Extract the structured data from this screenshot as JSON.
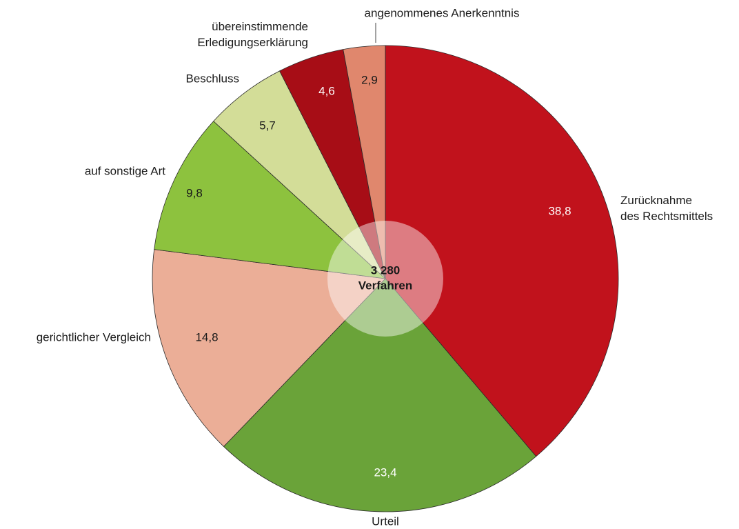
{
  "chart_data": {
    "type": "pie",
    "categories": [
      "Zurücknahme des Rechtsmittels",
      "Urteil",
      "gerichtlicher Vergleich",
      "auf sonstige Art",
      "Beschluss",
      "übereinstimmende Erledigungserklärung",
      "angenommenes Anerkenntnis"
    ],
    "values": [
      38.8,
      23.4,
      14.8,
      9.8,
      5.7,
      4.6,
      2.9
    ],
    "value_labels": [
      "38,8",
      "23,4",
      "14,8",
      "9,8",
      "5,7",
      "4,6",
      "2,9"
    ],
    "colors": [
      "#c1121c",
      "#6aa339",
      "#ebae97",
      "#8dc23e",
      "#d3dd98",
      "#a70d16",
      "#e0876d"
    ],
    "center_text": [
      "3 280",
      "Verfahren"
    ]
  }
}
